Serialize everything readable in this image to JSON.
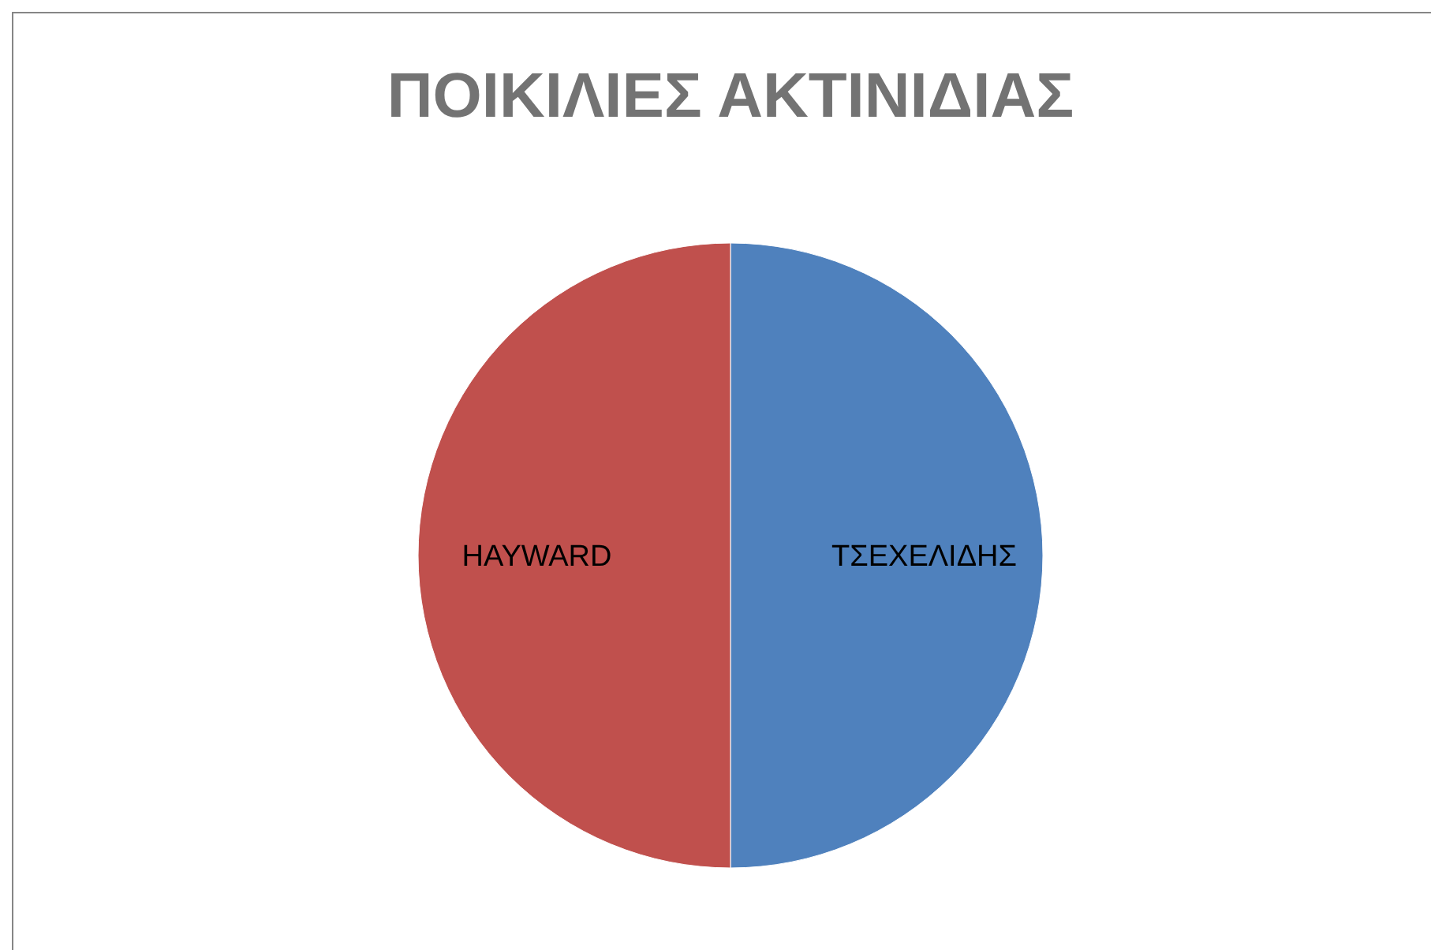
{
  "chart_data": {
    "type": "pie",
    "title": "ΠΟΙΚΙΛΙΕΣ ΑΚΤΙΝΙΔΙΑΣ",
    "categories": [
      "ΤΣΕΧΕΛΙΔΗΣ",
      "HAYWARD"
    ],
    "values": [
      50,
      50
    ],
    "colors": [
      "#4f81bd",
      "#c0504d"
    ]
  }
}
